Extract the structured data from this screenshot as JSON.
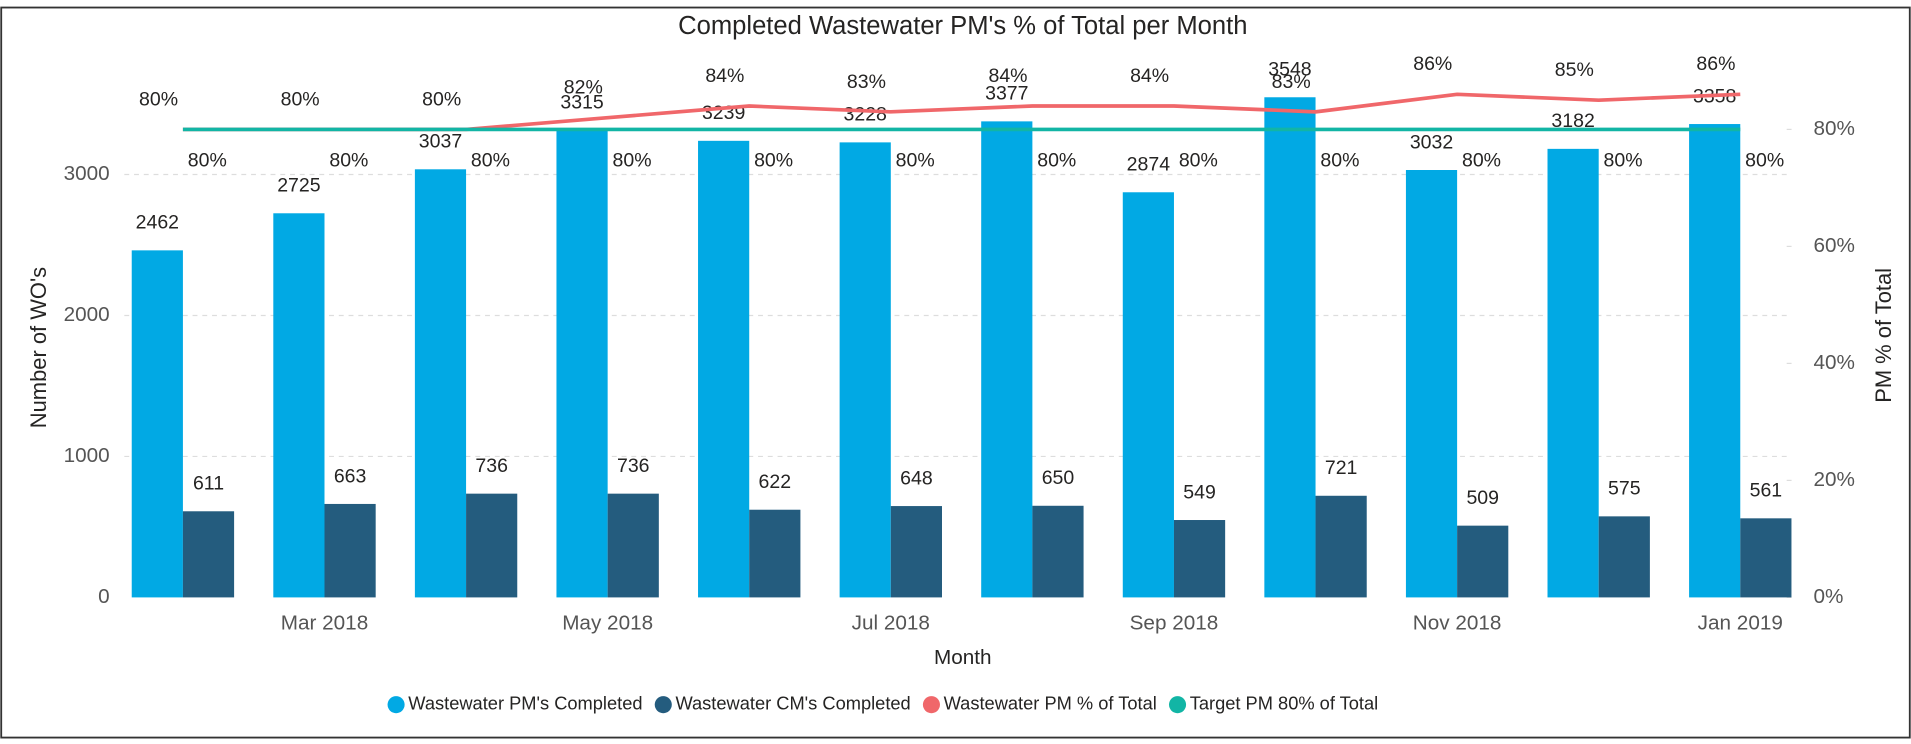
{
  "chart_data": {
    "type": "bar_line",
    "title": "Completed Wastewater PM's % of Total per Month",
    "xlabel": "Month",
    "ylabel": "Number of WO's",
    "y2label": "PM % of Total",
    "categories": [
      null,
      "Mar 2018",
      null,
      "May 2018",
      null,
      "Jul 2018",
      null,
      "Sep 2018",
      null,
      "Nov 2018",
      null,
      "Jan 2019"
    ],
    "series": [
      {
        "name": "Wastewater PM's Completed",
        "color": "#01a9e4",
        "kind": "bar",
        "values": [
          2462,
          2725,
          3037,
          3315,
          3239,
          3228,
          3377,
          2874,
          3548,
          3032,
          3182,
          3358
        ]
      },
      {
        "name": "Wastewater CM's Completed",
        "color": "#245c7e",
        "kind": "bar",
        "values": [
          611,
          663,
          736,
          736,
          622,
          648,
          650,
          549,
          721,
          509,
          575,
          561
        ]
      },
      {
        "name": "Wastewater PM % of Total",
        "color": "#f0676a",
        "kind": "line",
        "axis": "y2",
        "values": [
          80,
          80,
          80,
          82,
          84,
          83,
          84,
          84,
          83,
          86,
          85,
          86
        ],
        "value_labels": [
          "80%",
          "80%",
          "80%",
          "82%",
          "84%",
          "83%",
          "84%",
          "84%",
          "83%",
          "86%",
          "85%",
          "86%"
        ]
      },
      {
        "name": "Target PM 80% of Total",
        "color": "#12b5a5",
        "kind": "line",
        "axis": "y2",
        "values": [
          80,
          80,
          80,
          80,
          80,
          80,
          80,
          80,
          80,
          80,
          80,
          80
        ],
        "value_labels": [
          "80%",
          "80%",
          "80%",
          "80%",
          "80%",
          "80%",
          "80%",
          "80%",
          "80%",
          "80%",
          "80%",
          "80%"
        ]
      }
    ],
    "ylim": [
      0,
      4150
    ],
    "yticks": [
      0,
      1000,
      2000,
      3000
    ],
    "y2lim": [
      0,
      100
    ],
    "y2ticks": [
      {
        "value": 0,
        "label": "0%"
      },
      {
        "value": 20,
        "label": "20%"
      },
      {
        "value": 40,
        "label": "40%"
      },
      {
        "value": 60,
        "label": "60%"
      },
      {
        "value": 80,
        "label": "80%"
      }
    ],
    "grid": true,
    "legend": "bottom"
  }
}
